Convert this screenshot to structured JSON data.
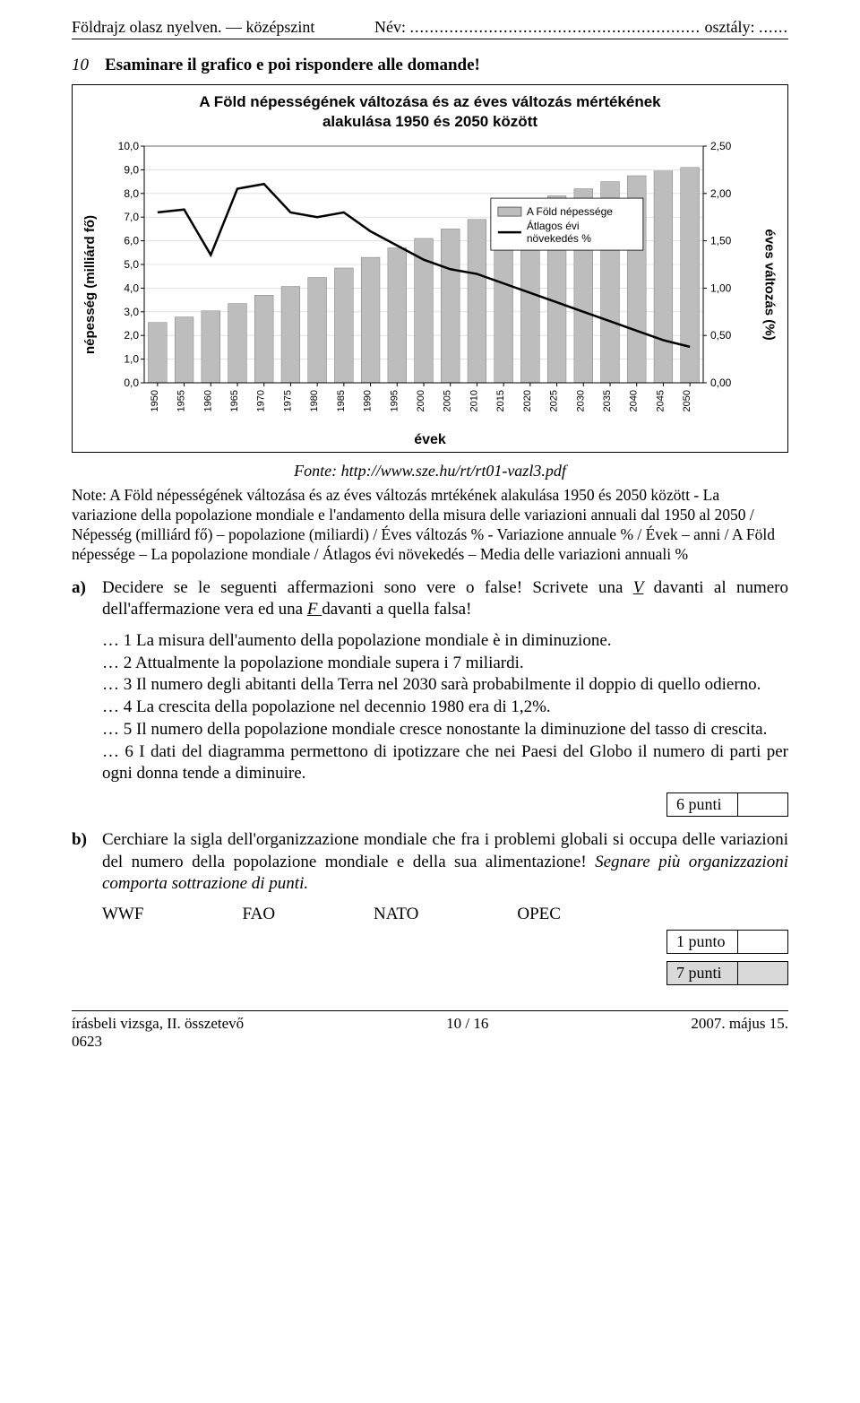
{
  "header": {
    "left": "Földrajz olasz nyelven. — középszint",
    "mid_label": "Név:",
    "mid_dots": "...........................................................",
    "right_label": "osztály:",
    "right_dots": "......"
  },
  "question": {
    "number": "10",
    "prompt": "Esaminare il grafico e poi rispondere alle domande!"
  },
  "chart": {
    "title_line1": "A Föld népességének változása és az éves változás mértékének",
    "title_line2": "alakulása 1950 és 2050 között",
    "y_left_label": "népesség (milliárd fő)",
    "y_right_label": "éves változás (%)",
    "x_label": "évek",
    "y_left_ticks": [
      "0,0",
      "1,0",
      "2,0",
      "3,0",
      "4,0",
      "5,0",
      "6,0",
      "7,0",
      "8,0",
      "9,0",
      "10,0"
    ],
    "y_left_lim": [
      0,
      10
    ],
    "y_right_ticks": [
      "0,00",
      "0,50",
      "1,00",
      "1,50",
      "2,00",
      "2,50"
    ],
    "y_right_lim": [
      0,
      2.5
    ],
    "x_ticks": [
      "1950",
      "1955",
      "1960",
      "1965",
      "1970",
      "1975",
      "1980",
      "1985",
      "1990",
      "1995",
      "2000",
      "2005",
      "2010",
      "2015",
      "2020",
      "2025",
      "2030",
      "2035",
      "2040",
      "2045",
      "2050"
    ],
    "legend": {
      "pop": "A Föld népessége",
      "growth": "Átlagos évi\nnövekedés %"
    },
    "bar_color": "#bdbdbd",
    "line_color": "#000000",
    "grid_color": "#d0d0d0",
    "background_color": "#ffffff",
    "bar_width": 0.7,
    "line_width": 2.5,
    "population": [
      2.55,
      2.78,
      3.04,
      3.35,
      3.7,
      4.07,
      4.45,
      4.85,
      5.3,
      5.7,
      6.1,
      6.5,
      6.9,
      7.25,
      7.6,
      7.9,
      8.2,
      8.5,
      8.75,
      8.95,
      9.1
    ],
    "growth": [
      1.8,
      1.83,
      1.35,
      2.05,
      2.1,
      1.8,
      1.75,
      1.8,
      1.6,
      1.45,
      1.3,
      1.2,
      1.15,
      1.05,
      0.95,
      0.85,
      0.75,
      0.65,
      0.55,
      0.45,
      0.38
    ]
  },
  "fonte": "Fonte: http://www.sze.hu/rt/rt01-vazl3.pdf",
  "note": "Note: A Föld népességének változása és az éves változás mrtékének alakulása 1950 és 2050 között - La variazione della popolazione mondiale e l'andamento della misura delle variazioni annuali dal 1950 al 2050 / Népesség (milliárd fő) – popolazione (miliardi) / Éves változás % - Variazione annuale % / Évek – anni / A Föld népessége – La popolazione mondiale / Átlagos évi növekedés – Media delle variazioni annuali %",
  "sub_a": {
    "letter": "a)",
    "text1": "Decidere se le seguenti affermazioni sono vere o false! Scrivete una ",
    "v": "V",
    "text2": " davanti al numero dell'affermazione vera ed una ",
    "f": "F ",
    "text3": "davanti a quella falsa!",
    "stm1": "… 1 La misura dell'aumento della popolazione mondiale è in diminuzione.",
    "stm2": "… 2 Attualmente la popolazione mondiale supera i 7 miliardi.",
    "stm3": "… 3 Il numero degli abitanti della Terra nel 2030 sarà probabilmente il doppio di quello odierno.",
    "stm4": "… 4 La crescita della popolazione nel decennio 1980 era di 1,2%.",
    "stm5": "… 5 Il numero della popolazione mondiale cresce nonostante la diminuzione del tasso di crescita.",
    "stm6": "… 6 I dati del diagramma permettono di ipotizzare che nei Paesi del Globo il numero di parti per ogni donna tende a diminuire.",
    "points": "6 punti"
  },
  "sub_b": {
    "letter": "b)",
    "text": "Cerchiare la sigla dell'organizzazione mondiale che fra i problemi globali si occupa delle variazioni del numero della popolazione mondiale e della sua alimentazione! ",
    "italic": "Segnare più organizzazioni comporta sottrazione di punti.",
    "orgs": [
      "WWF",
      "FAO",
      "NATO",
      "OPEC"
    ],
    "points": "1 punto",
    "total": "7 punti"
  },
  "footer": {
    "left1": "írásbeli vizsga, II. összetevő",
    "left2": "0623",
    "mid": "10 / 16",
    "right": "2007. május 15."
  }
}
